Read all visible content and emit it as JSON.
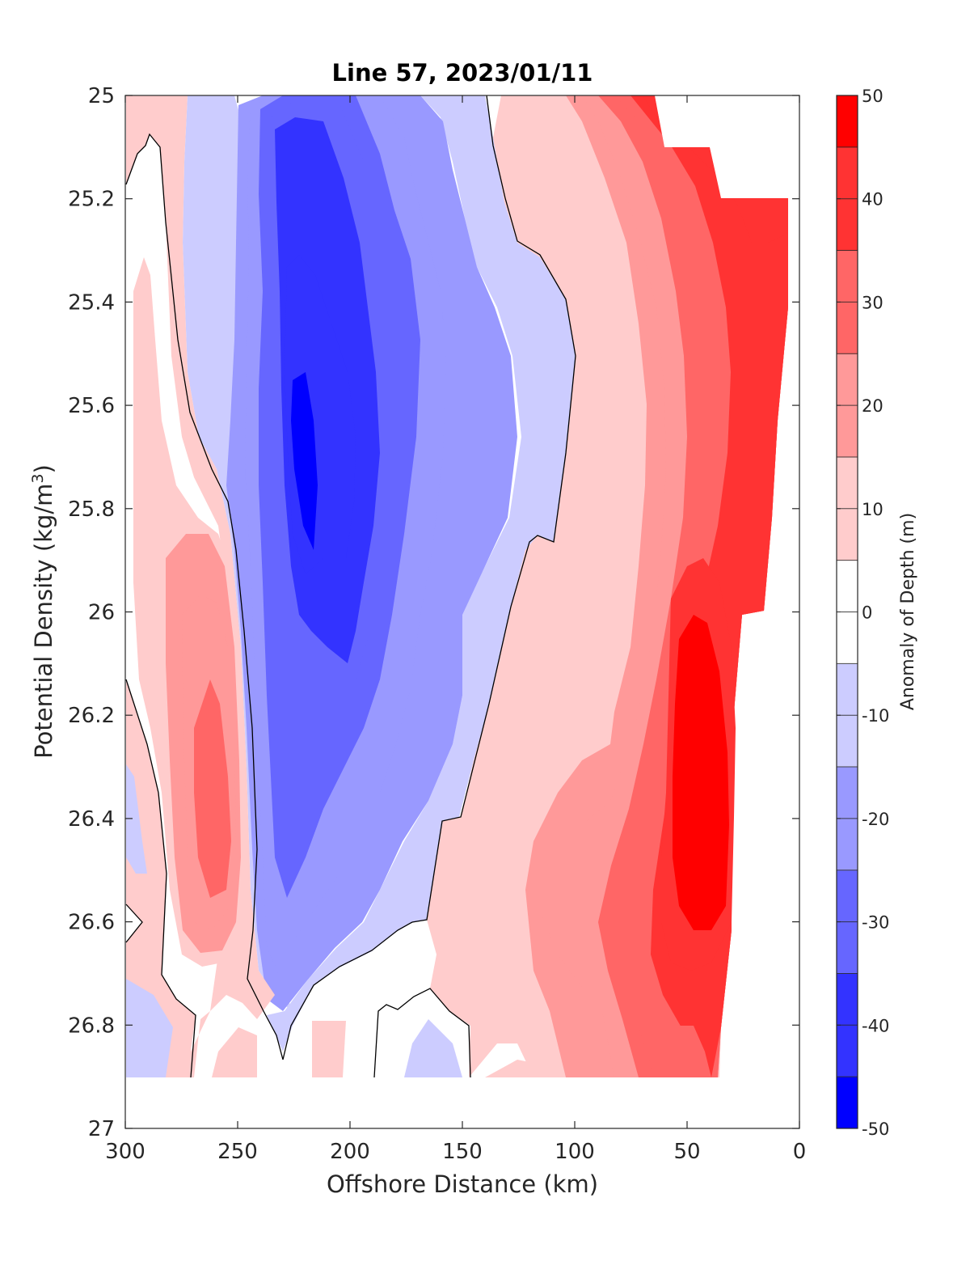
{
  "chart_data": {
    "type": "contour",
    "title": "Line 57, 2023/01/11",
    "xlabel": "Offshore Distance (km)",
    "ylabel_main": "Potential Density (kg/m",
    "ylabel_sup": "3",
    "ylabel_close": ")",
    "colorbar_label": "Anomaly of Depth (m)",
    "x_axis_reversed": true,
    "y_axis_reversed": true,
    "xlim": [
      0,
      300
    ],
    "ylim": [
      25,
      27
    ],
    "xticks": [
      300,
      250,
      200,
      150,
      100,
      50,
      0
    ],
    "xtick_labels": [
      "300",
      "250",
      "200",
      "150",
      "100",
      "50",
      "0"
    ],
    "yticks": [
      25,
      25.2,
      25.4,
      25.6,
      25.8,
      26,
      26.2,
      26.4,
      26.6,
      26.8,
      27
    ],
    "ytick_labels": [
      "25",
      "25.2",
      "25.4",
      "25.6",
      "25.8",
      "26",
      "26.2",
      "26.4",
      "26.6",
      "26.8",
      "27"
    ],
    "colorbar_range": [
      -50,
      50
    ],
    "colorbar_ticks": [
      50,
      40,
      30,
      20,
      10,
      0,
      -10,
      -20,
      -30,
      -40,
      -50
    ],
    "colorbar_tick_labels": [
      "50",
      "40",
      "30",
      "20",
      "10",
      "0",
      "-10",
      "-20",
      "-30",
      "-40",
      "-50"
    ],
    "contour_level_step": 5,
    "colormap": "blue-white-red",
    "negative_color": "#0000ff",
    "positive_color": "#ff0000",
    "zero_contour_color": "#000000",
    "features": [
      {
        "x": 215,
        "y": 25.72,
        "value": -45
      },
      {
        "x": 260,
        "y": 26.38,
        "value": 30
      },
      {
        "x": 45,
        "y": 26.2,
        "value": 50
      },
      {
        "x": 15,
        "y": 25.22,
        "value": 40
      }
    ]
  }
}
